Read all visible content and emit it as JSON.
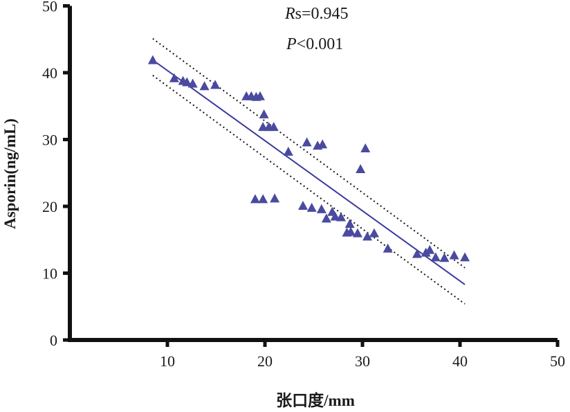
{
  "chart_data": {
    "type": "scatter",
    "xlabel": "张口度/mm",
    "ylabel": "Asporin(ng/mL)",
    "xlim": [
      0,
      50
    ],
    "ylim": [
      0,
      50
    ],
    "xticks": [
      10,
      20,
      30,
      40,
      50
    ],
    "yticks": [
      0,
      10,
      20,
      30,
      40,
      50
    ],
    "grid": false,
    "annotations": [
      {
        "italic": "R",
        "rest": "s=0.945"
      },
      {
        "italic": "P",
        "rest": "<0.001"
      }
    ],
    "colors": {
      "marker": "#4a4aa0",
      "fit_line": "#3a3aa0",
      "ci_line": "#111111",
      "axis": "#111111"
    },
    "series": [
      {
        "marker": "triangle",
        "points": [
          [
            8.5,
            41.9
          ],
          [
            10.7,
            39.2
          ],
          [
            11.6,
            38.8
          ],
          [
            12.0,
            38.6
          ],
          [
            12.6,
            38.4
          ],
          [
            13.8,
            38.0
          ],
          [
            14.9,
            38.2
          ],
          [
            18.1,
            36.5
          ],
          [
            18.6,
            36.5
          ],
          [
            19.1,
            36.4
          ],
          [
            19.5,
            36.5
          ],
          [
            19.9,
            33.8
          ],
          [
            19.8,
            31.9
          ],
          [
            20.4,
            31.9
          ],
          [
            20.9,
            31.9
          ],
          [
            22.4,
            28.2
          ],
          [
            24.3,
            29.6
          ],
          [
            25.4,
            29.1
          ],
          [
            25.9,
            29.3
          ],
          [
            29.8,
            25.6
          ],
          [
            30.3,
            28.7
          ],
          [
            19.0,
            21.1
          ],
          [
            19.8,
            21.1
          ],
          [
            21.0,
            21.2
          ],
          [
            23.9,
            20.1
          ],
          [
            24.8,
            19.8
          ],
          [
            25.8,
            19.6
          ],
          [
            26.9,
            19.2
          ],
          [
            26.3,
            18.2
          ],
          [
            27.2,
            18.5
          ],
          [
            27.8,
            18.4
          ],
          [
            28.7,
            17.4
          ],
          [
            28.4,
            16.1
          ],
          [
            28.8,
            16.2
          ],
          [
            29.5,
            16.0
          ],
          [
            30.5,
            15.5
          ],
          [
            31.2,
            16.0
          ],
          [
            32.6,
            13.7
          ],
          [
            35.6,
            12.9
          ],
          [
            36.5,
            13.1
          ],
          [
            36.9,
            13.5
          ],
          [
            37.5,
            12.4
          ],
          [
            38.4,
            12.3
          ],
          [
            39.4,
            12.7
          ],
          [
            40.5,
            12.4
          ]
        ]
      }
    ],
    "fit_line": {
      "x": [
        8.5,
        40.5
      ],
      "y": [
        41.9,
        8.3
      ]
    },
    "ci_upper": {
      "x": [
        8.5,
        40.5
      ],
      "y": [
        45.1,
        10.8
      ]
    },
    "ci_lower": {
      "x": [
        8.5,
        40.5
      ],
      "y": [
        39.6,
        5.4
      ]
    }
  }
}
